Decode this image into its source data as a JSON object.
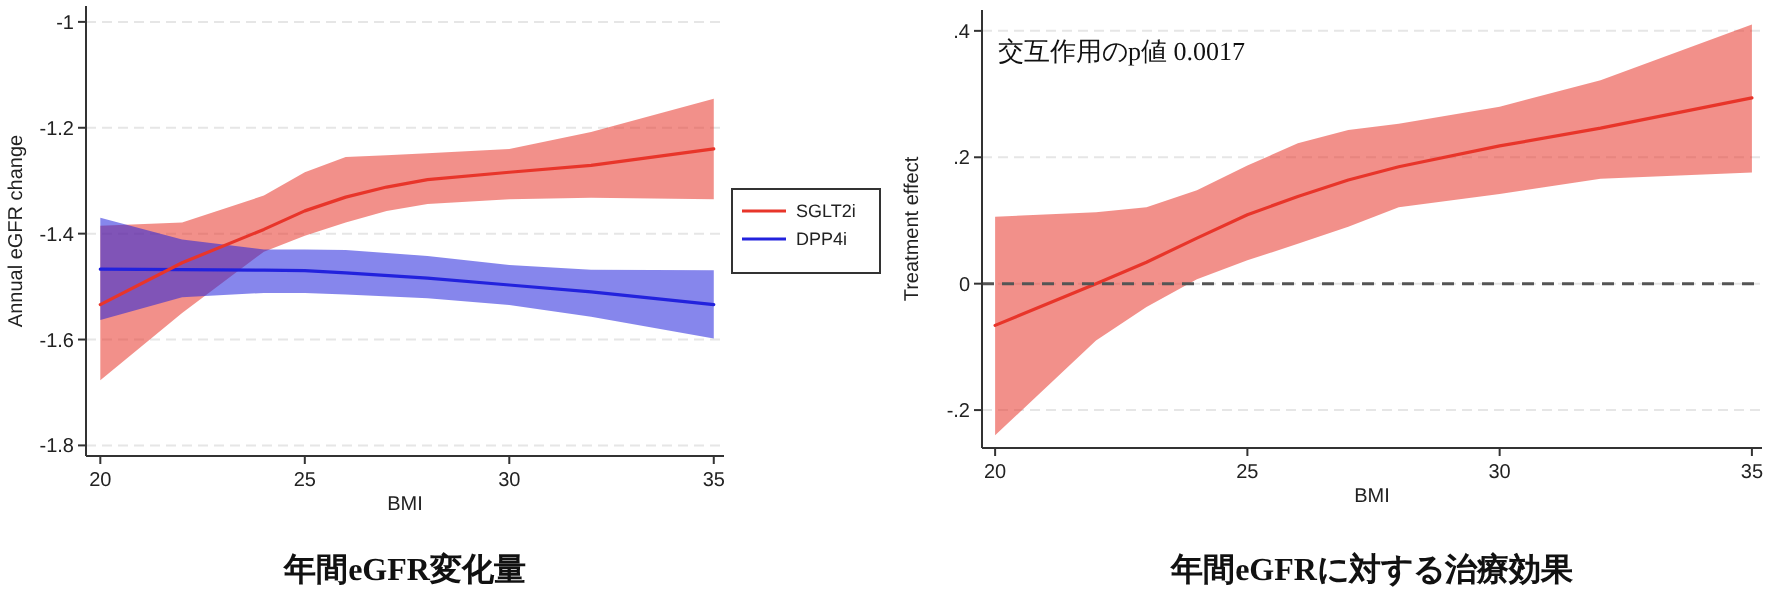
{
  "chart_data": [
    {
      "type": "line",
      "title": "年間eGFR変化量",
      "xlabel": "BMI",
      "ylabel": "Annual eGFR change",
      "xlim": [
        19.65,
        35.25
      ],
      "ylim": [
        -1.82,
        -0.97
      ],
      "xticks": [
        20,
        25,
        30,
        35
      ],
      "yticks": [
        -1,
        -1.2,
        -1.4,
        -1.6,
        -1.8
      ],
      "grid": "y",
      "legend": "right",
      "series": [
        {
          "name": "SGLT2i",
          "color": "#e8352a",
          "x": [
            20,
            22,
            24,
            25,
            26,
            27,
            28,
            30,
            32,
            35
          ],
          "values": [
            -1.534,
            -1.455,
            -1.392,
            -1.357,
            -1.331,
            -1.312,
            -1.298,
            -1.284,
            -1.271,
            -1.24
          ],
          "lower": [
            -1.677,
            -1.55,
            -1.434,
            -1.404,
            -1.379,
            -1.357,
            -1.344,
            -1.335,
            -1.332,
            -1.335
          ],
          "upper": [
            -1.385,
            -1.379,
            -1.328,
            -1.284,
            -1.255,
            -1.252,
            -1.248,
            -1.24,
            -1.208,
            -1.145
          ]
        },
        {
          "name": "DPP4i",
          "color": "#2222dd",
          "x": [
            20,
            22,
            24,
            25,
            26,
            28,
            30,
            32,
            35
          ],
          "values": [
            -1.467,
            -1.468,
            -1.469,
            -1.47,
            -1.474,
            -1.484,
            -1.497,
            -1.51,
            -1.534
          ],
          "lower": [
            -1.563,
            -1.52,
            -1.512,
            -1.512,
            -1.515,
            -1.522,
            -1.535,
            -1.557,
            -1.598
          ],
          "upper": [
            -1.37,
            -1.411,
            -1.43,
            -1.43,
            -1.431,
            -1.442,
            -1.459,
            -1.468,
            -1.469
          ]
        }
      ]
    },
    {
      "type": "line",
      "title": "年間eGFRに対する治療効果",
      "xlabel": "BMI",
      "ylabel": "Treatment effect",
      "xlim": [
        19.74,
        35.2
      ],
      "ylim": [
        -0.26,
        0.433
      ],
      "xticks": [
        20,
        25,
        30,
        35
      ],
      "yticks": [
        {
          "value": -0.2,
          "label": "-.2"
        },
        0,
        {
          "value": 0.2,
          "label": ".2"
        },
        {
          "value": 0.4,
          "label": ".4"
        }
      ],
      "grid": "y",
      "annotations": [
        "交互作用のp値 0.0017"
      ],
      "ref_lines": [
        {
          "axis": "y",
          "value": 0,
          "color": "#555555",
          "line_style": "dashed"
        }
      ],
      "series": [
        {
          "color": "#e8352a",
          "x": [
            20,
            22,
            23,
            24,
            25,
            26,
            27,
            28,
            30,
            32,
            35
          ],
          "values": [
            -0.066,
            0,
            0.034,
            0.072,
            0.109,
            0.138,
            0.164,
            0.185,
            0.218,
            0.246,
            0.294
          ],
          "lower": [
            -0.24,
            -0.09,
            -0.037,
            0.007,
            0.037,
            0.063,
            0.09,
            0.121,
            0.142,
            0.166,
            0.176
          ],
          "upper": [
            0.106,
            0.113,
            0.121,
            0.148,
            0.187,
            0.222,
            0.243,
            0.253,
            0.28,
            0.322,
            0.41
          ]
        }
      ]
    }
  ]
}
